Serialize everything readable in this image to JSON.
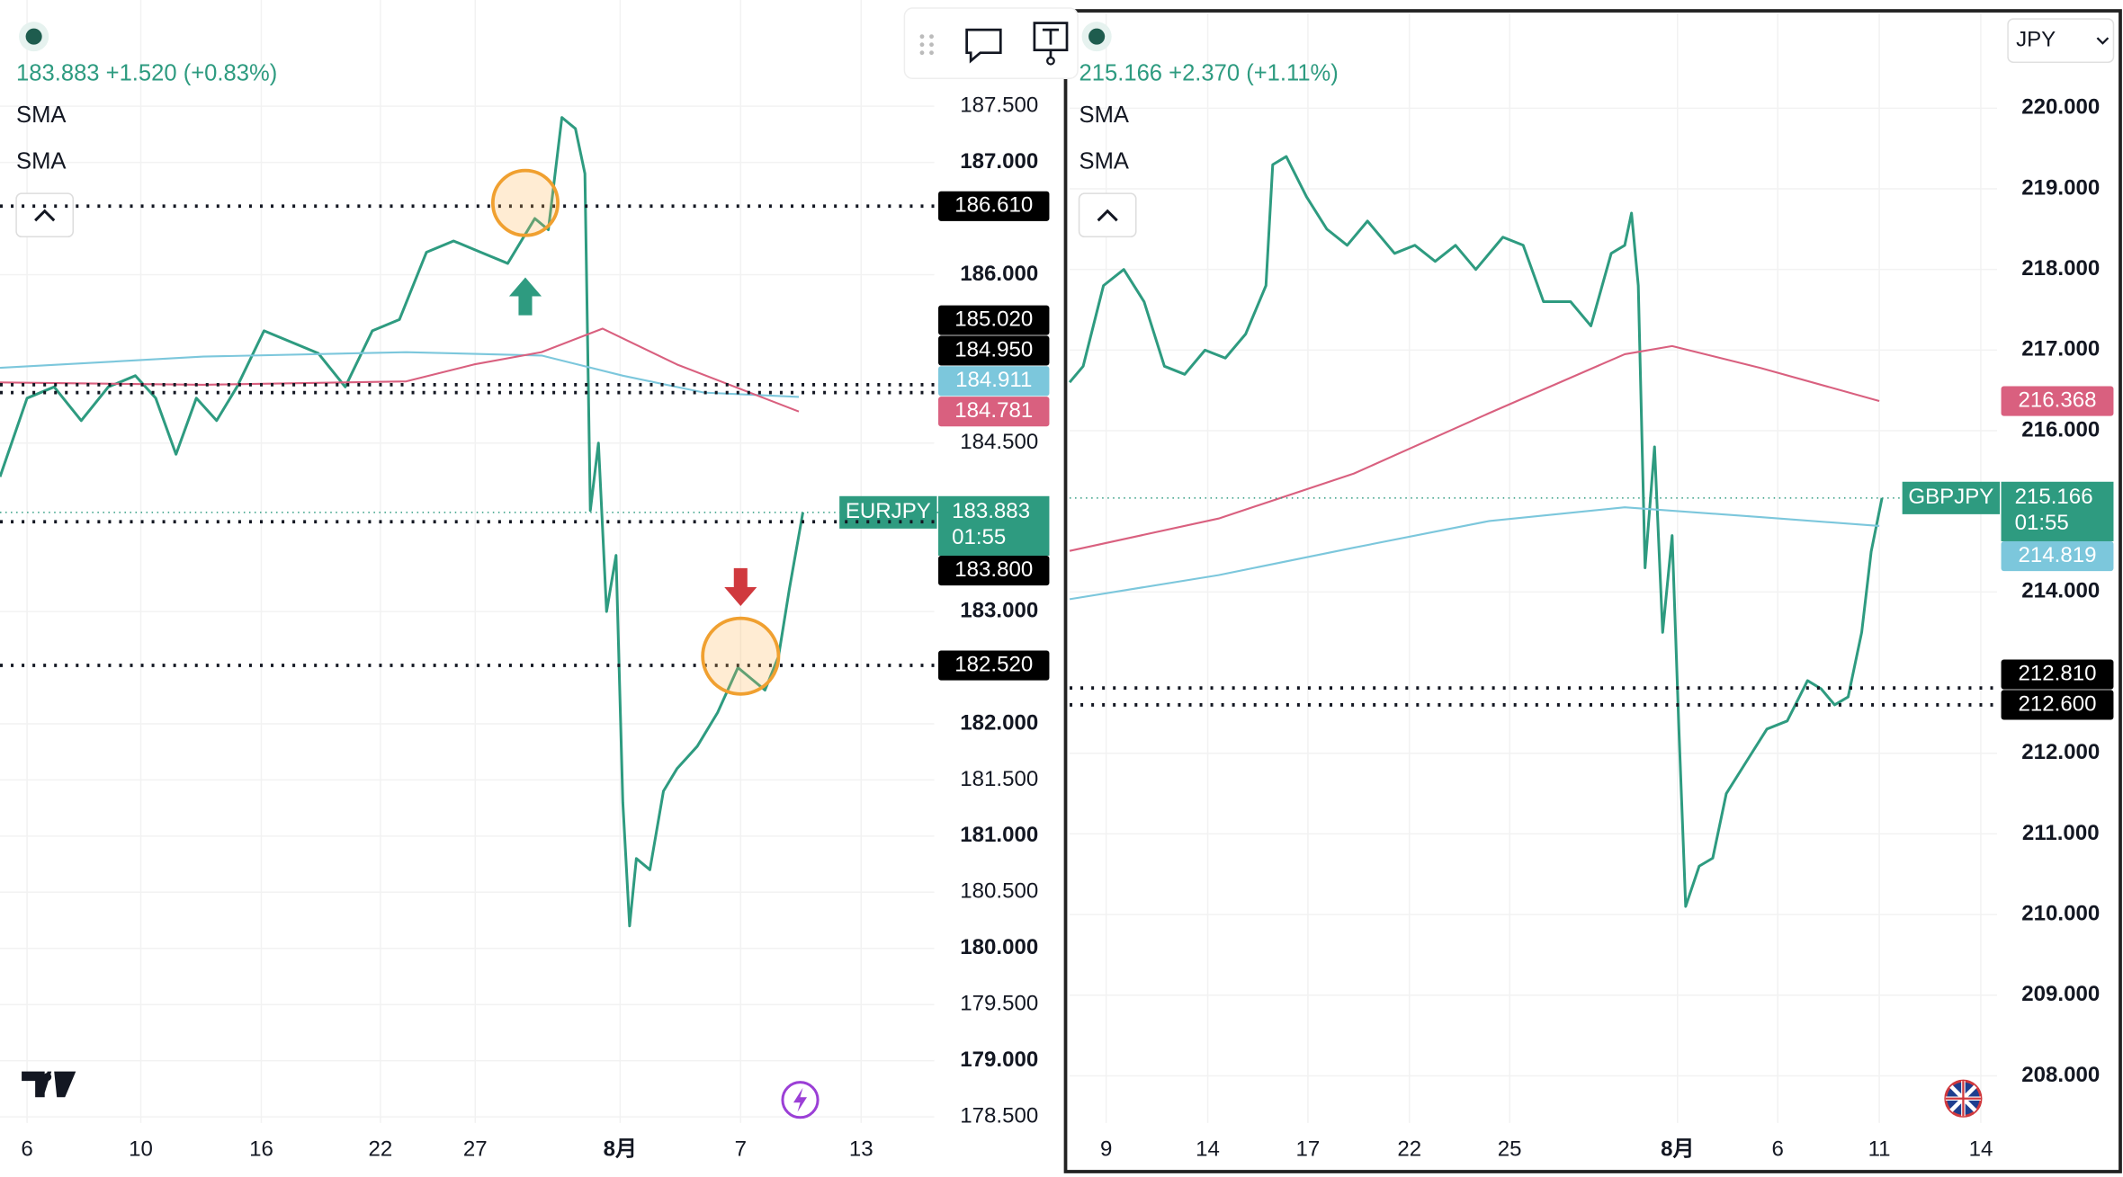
{
  "chart_data": [
    {
      "type": "line",
      "quote": "183.883 +1.520 (+0.83%)",
      "countdown": "01:55",
      "xlim": [
        0,
        69
      ],
      "xticks": [
        {
          "value": 2,
          "label": "6"
        },
        {
          "value": 10.4,
          "label": "10"
        },
        {
          "value": 19.3,
          "label": "16"
        },
        {
          "value": 28.1,
          "label": "22"
        },
        {
          "value": 35.1,
          "label": "27"
        },
        {
          "value": 45.8,
          "label": "8月"
        },
        {
          "value": 54.7,
          "label": "7"
        },
        {
          "value": 63.6,
          "label": "13"
        }
      ],
      "ylim": [
        178.446,
        188.446
      ],
      "yticks": [
        {
          "value": 178.5,
          "label": "178.500"
        },
        {
          "value": 179,
          "label": "179.000"
        },
        {
          "value": 179.5,
          "label": "179.500"
        },
        {
          "value": 180,
          "label": "180.000"
        },
        {
          "value": 180.5,
          "label": "180.500"
        },
        {
          "value": 181,
          "label": "181.000"
        },
        {
          "value": 181.5,
          "label": "181.500"
        },
        {
          "value": 182,
          "label": "182.000"
        },
        {
          "value": 183,
          "label": "183.000"
        },
        {
          "value": 184.5,
          "label": "184.500"
        },
        {
          "value": 186,
          "label": "186.000"
        },
        {
          "value": 187,
          "label": "187.000"
        },
        {
          "value": 187.5,
          "label": "187.500"
        }
      ],
      "series": [
        {
          "name": "EURJPY",
          "color": "#2e9b80",
          "x": [
            0,
            2,
            4,
            6,
            8,
            10,
            11.5,
            13,
            14.5,
            16,
            17.5,
            19.5,
            21.5,
            23.5,
            25.5,
            27.5,
            29.5,
            31.5,
            33.5,
            35.5,
            37.5,
            39.5,
            40.5,
            41.5,
            42.5,
            43.2,
            43.6,
            44.2,
            44.8,
            45.5,
            46,
            46.5,
            47,
            48,
            49,
            50,
            51.5,
            53,
            54.5,
            55.5,
            56.5,
            57.5,
            58.3,
            59.3
          ],
          "values": [
            184.2,
            184.9,
            185.0,
            184.7,
            185.0,
            185.1,
            184.9,
            184.4,
            184.9,
            184.7,
            185.0,
            185.5,
            185.4,
            185.3,
            185.0,
            185.5,
            185.6,
            186.2,
            186.3,
            186.2,
            186.1,
            186.5,
            186.4,
            187.4,
            187.3,
            186.9,
            183.9,
            184.5,
            183.0,
            183.5,
            181.3,
            180.2,
            180.8,
            180.7,
            181.4,
            181.6,
            181.8,
            182.1,
            182.5,
            182.4,
            182.3,
            182.6,
            183.2,
            183.883
          ]
        },
        {
          "name": "SMA",
          "color": "#7cc7dc",
          "x": [
            0,
            15,
            30,
            40,
            46,
            52,
            59
          ],
          "values": [
            185.17,
            185.27,
            185.31,
            185.28,
            185.1,
            184.95,
            184.911
          ]
        },
        {
          "name": "SMA",
          "color": "#d9607f",
          "x": [
            0,
            15,
            30,
            35,
            40,
            44.5,
            50,
            59
          ],
          "values": [
            185.04,
            185.02,
            185.05,
            185.2,
            185.31,
            185.52,
            185.2,
            184.781
          ]
        }
      ],
      "last_price": {
        "value": 183.883,
        "label": "183.883",
        "color": "#2e9b80"
      },
      "price_labels": [
        {
          "value": 186.61,
          "label": "186.610",
          "color": "#000000",
          "line": "dotted"
        },
        {
          "value": 185.02,
          "label": "185.020",
          "color": "#000000",
          "line": "dotted"
        },
        {
          "value": 184.95,
          "label": "184.950",
          "color": "#000000",
          "line": "dotted"
        },
        {
          "value": 184.911,
          "label": "184.911",
          "color": "#7cc7dc",
          "line": "none"
        },
        {
          "value": 184.781,
          "label": "184.781",
          "color": "#d9607f",
          "line": "none"
        },
        {
          "value": 183.8,
          "label": "183.800",
          "color": "#000000",
          "line": "dotted"
        },
        {
          "value": 182.52,
          "label": "182.520",
          "color": "#000000",
          "line": "dotted"
        }
      ]
    },
    {
      "type": "line",
      "quote": "215.166 +2.370 (+1.11%)",
      "countdown": "01:55",
      "currency_button": "JPY",
      "xlim": [
        0,
        68.5
      ],
      "xticks": [
        {
          "value": 2.7,
          "label": "9"
        },
        {
          "value": 10.2,
          "label": "14"
        },
        {
          "value": 17.6,
          "label": "17"
        },
        {
          "value": 25.1,
          "label": "22"
        },
        {
          "value": 32.5,
          "label": "25"
        },
        {
          "value": 44.9,
          "label": "8月"
        },
        {
          "value": 52.3,
          "label": "6"
        },
        {
          "value": 59.8,
          "label": "11"
        },
        {
          "value": 67.3,
          "label": "14"
        }
      ],
      "ylim": [
        207.416,
        221.174
      ],
      "yticks": [
        {
          "value": 208,
          "label": "208.000"
        },
        {
          "value": 209,
          "label": "209.000"
        },
        {
          "value": 210,
          "label": "210.000"
        },
        {
          "value": 211,
          "label": "211.000"
        },
        {
          "value": 212,
          "label": "212.000"
        },
        {
          "value": 214,
          "label": "214.000"
        },
        {
          "value": 216,
          "label": "216.000"
        },
        {
          "value": 217,
          "label": "217.000"
        },
        {
          "value": 218,
          "label": "218.000"
        },
        {
          "value": 219,
          "label": "219.000"
        },
        {
          "value": 220,
          "label": "220.000"
        }
      ],
      "series": [
        {
          "name": "GBPJPY",
          "color": "#2e9b80",
          "x": [
            0,
            1,
            2.5,
            4,
            5.5,
            7,
            8.5,
            10,
            11.5,
            13,
            14.5,
            15,
            16,
            17.5,
            19,
            20.5,
            22,
            24,
            25.5,
            27,
            28.5,
            30,
            32,
            33.5,
            35,
            37,
            38.5,
            40,
            41,
            41.5,
            42,
            42.5,
            43.2,
            43.8,
            44.5,
            45,
            45.5,
            46.5,
            47.5,
            48.5,
            50,
            51.5,
            53,
            54.5,
            55.5,
            56.5,
            57.5,
            58.5,
            59.2,
            60
          ],
          "values": [
            216.6,
            216.8,
            217.8,
            218.0,
            217.6,
            216.8,
            216.7,
            217.0,
            216.9,
            217.2,
            217.8,
            219.3,
            219.4,
            218.9,
            218.5,
            218.3,
            218.6,
            218.2,
            218.3,
            218.1,
            218.3,
            218.0,
            218.4,
            218.3,
            217.6,
            217.6,
            217.3,
            218.2,
            218.3,
            218.7,
            217.8,
            214.3,
            215.8,
            213.5,
            214.7,
            212.3,
            210.1,
            210.6,
            210.7,
            211.5,
            211.9,
            212.3,
            212.4,
            212.9,
            212.8,
            212.6,
            212.7,
            213.5,
            214.5,
            215.166
          ]
        },
        {
          "name": "SMA",
          "color": "#7cc7dc",
          "x": [
            0,
            11,
            21,
            31,
            41,
            51,
            59.8
          ],
          "values": [
            213.91,
            214.21,
            214.55,
            214.88,
            215.05,
            214.93,
            214.819
          ]
        },
        {
          "name": "SMA",
          "color": "#d9607f",
          "x": [
            0,
            11,
            21,
            31,
            41,
            44.5,
            51,
            59.8
          ],
          "values": [
            214.51,
            214.91,
            215.47,
            216.22,
            216.95,
            217.05,
            216.78,
            216.368
          ]
        }
      ],
      "last_price": {
        "value": 215.166,
        "label": "215.166",
        "color": "#2e9b80"
      },
      "price_labels": [
        {
          "value": 216.368,
          "label": "216.368",
          "color": "#d9607f",
          "line": "none"
        },
        {
          "value": 214.819,
          "label": "214.819",
          "color": "#7cc7dc",
          "line": "none"
        },
        {
          "value": 212.81,
          "label": "212.810",
          "color": "#000000",
          "line": "dotted"
        },
        {
          "value": 212.6,
          "label": "212.600",
          "color": "#000000",
          "line": "dotted"
        }
      ]
    }
  ]
}
